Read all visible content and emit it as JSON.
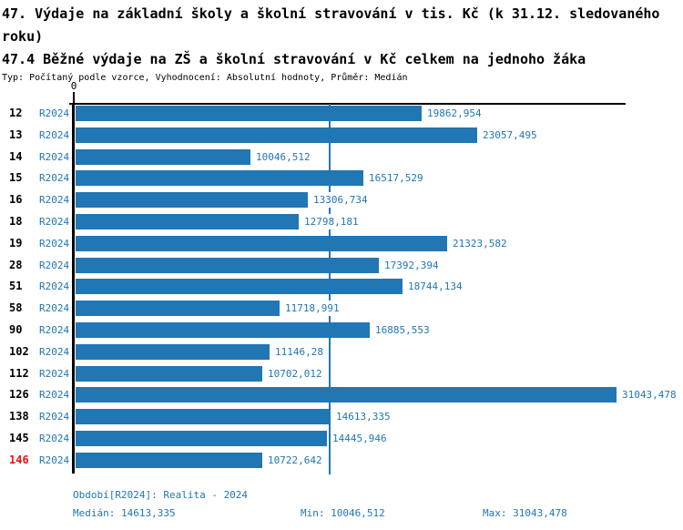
{
  "chart_data": {
    "type": "bar",
    "orientation": "horizontal",
    "title": "47. Výdaje na základní školy a školní stravování v tis. Kč (k 31.12. sledovaného roku)",
    "subtitle": "47.4 Běžné výdaje na ZŠ a školní stravování v Kč celkem na jednoho žáka",
    "meta_line": "Typ: Počítaný podle vzorce, Vyhodnocení: Absolutní hodnoty, Průměr: Medián",
    "x_axis": {
      "zero_label": "0",
      "min": 0,
      "max": 31043.478,
      "gridlines": false
    },
    "median_line_value": 14613.335,
    "categories": [
      "12",
      "13",
      "14",
      "15",
      "16",
      "18",
      "19",
      "28",
      "51",
      "58",
      "90",
      "102",
      "112",
      "126",
      "138",
      "145",
      "146"
    ],
    "series": [
      {
        "name": "R2024",
        "values": [
          19862.954,
          23057.495,
          10046.512,
          16517.529,
          13306.734,
          12798.181,
          21323.582,
          17392.394,
          18744.134,
          11718.991,
          16885.553,
          11146.28,
          10702.012,
          31043.478,
          14613.335,
          14445.946,
          10722.642
        ],
        "labels": [
          "19862,954",
          "23057,495",
          "10046,512",
          "16517,529",
          "13306,734",
          "12798,181",
          "21323,582",
          "17392,394",
          "18744,134",
          "11718,991",
          "16885,553",
          "11146,28",
          "10702,012",
          "31043,478",
          "14613,335",
          "14445,946",
          "10722,642"
        ]
      }
    ],
    "highlight_category": "146",
    "legend_position": "none"
  },
  "footer": {
    "period_line": "Období[R2024]: Realita - 2024",
    "median_label": "Medián: 14613,335",
    "min_label": "Min: 10046,512",
    "max_label": "Max: 31043,478"
  },
  "colors": {
    "bar": "#2176b4",
    "text_blue": "#2176b4",
    "highlight_red": "#ee1111",
    "axis_black": "#000000",
    "background": "#ffffff"
  }
}
